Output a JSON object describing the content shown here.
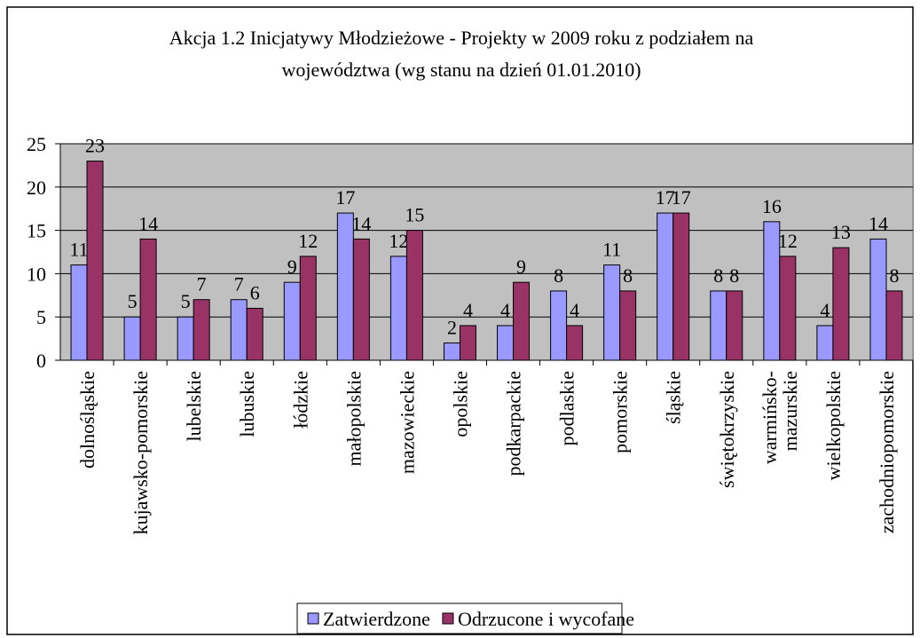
{
  "chart_data": {
    "type": "bar",
    "title": "Akcja 1.2 Inicjatywy Młodzieżowe - Projekty w 2009 roku z podziałem na\nwojewództwa (wg stanu na dzień 01.01.2010)",
    "categories": [
      "dolnośląskie",
      "kujawsko-pomorskie",
      "lubelskie",
      "lubuskie",
      "łódzkie",
      "małopolskie",
      "mazowieckie",
      "opolskie",
      "podkarpackie",
      "podlaskie",
      "pomorskie",
      "śląskie",
      "świętokrzyskie",
      "warmińsko-\nmazurskie",
      "wielkopolskie",
      "zachodniopomorskie"
    ],
    "series": [
      {
        "name": "Zatwierdzone",
        "color": "#9999ff",
        "values": [
          11,
          5,
          5,
          7,
          9,
          17,
          12,
          2,
          4,
          8,
          11,
          17,
          8,
          16,
          4,
          14
        ]
      },
      {
        "name": "Odrzucone i wycofane",
        "color": "#993366",
        "values": [
          23,
          14,
          7,
          6,
          12,
          14,
          15,
          4,
          9,
          4,
          8,
          17,
          8,
          12,
          13,
          8
        ]
      }
    ],
    "ylim": [
      0,
      25
    ],
    "yticks": [
      0,
      5,
      10,
      15,
      20,
      25
    ],
    "grid": true,
    "legend": "bottom"
  }
}
